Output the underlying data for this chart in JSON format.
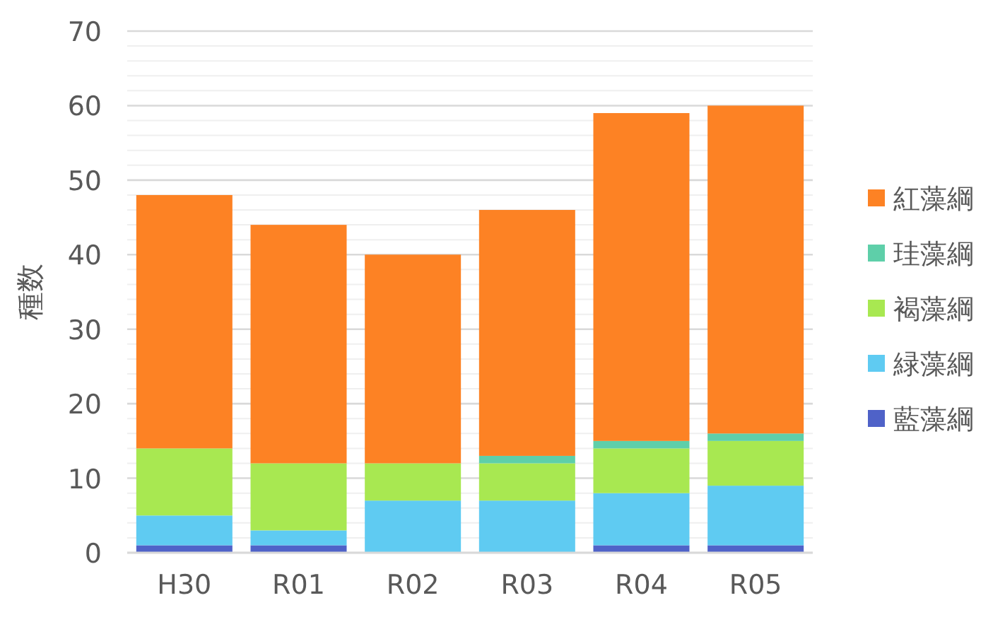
{
  "chart_data": {
    "type": "bar",
    "stacked": true,
    "ylabel": "種数",
    "categories": [
      "H30",
      "R01",
      "R02",
      "R03",
      "R04",
      "R05"
    ],
    "ylim": [
      0,
      70
    ],
    "yticks": [
      0,
      10,
      20,
      30,
      40,
      50,
      60,
      70
    ],
    "grid": "y",
    "legend": "right",
    "series": [
      {
        "name": "藍藻綱",
        "color": "#4f62c8",
        "values": [
          1,
          1,
          0,
          0,
          1,
          1
        ]
      },
      {
        "name": "緑藻綱",
        "color": "#5fcbf2",
        "values": [
          4,
          2,
          7,
          7,
          7,
          8
        ]
      },
      {
        "name": "褐藻綱",
        "color": "#a8e851",
        "values": [
          9,
          9,
          5,
          5,
          6,
          6
        ]
      },
      {
        "name": "珪藻綱",
        "color": "#5ecfa9",
        "values": [
          0,
          0,
          0,
          1,
          1,
          1
        ]
      },
      {
        "name": "紅藻綱",
        "color": "#fd8224",
        "values": [
          34,
          32,
          28,
          33,
          44,
          44
        ]
      }
    ]
  }
}
